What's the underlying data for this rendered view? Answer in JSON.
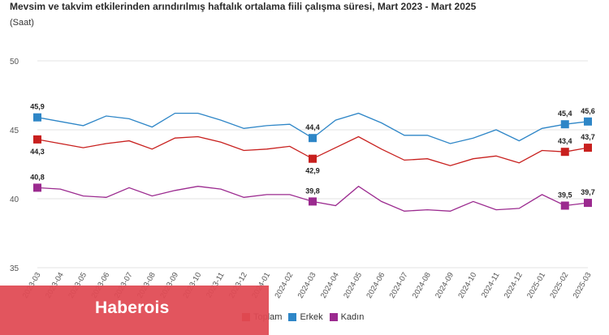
{
  "chart_data": {
    "type": "line",
    "title": "Mevsim ve takvim etkilerinden arındırılmış haftalık ortalama fiili çalışma süresi, Mart 2023 - Mart 2025",
    "subtitle": "(Saat)",
    "ylim": [
      35,
      50
    ],
    "yticks": [
      "35",
      "40",
      "45",
      "50"
    ],
    "categories": [
      "2023-03",
      "2023-04",
      "2023-05",
      "2023-06",
      "2023-07",
      "2023-08",
      "2023-09",
      "2023-10",
      "2023-11",
      "2023-12",
      "2024-01",
      "2024-02",
      "2024-03",
      "2024-04",
      "2024-05",
      "2024-06",
      "2024-07",
      "2024-08",
      "2024-09",
      "2024-10",
      "2024-11",
      "2024-12",
      "2025-01",
      "2025-02",
      "2025-03"
    ],
    "grid": true,
    "legend_position": "bottom",
    "series": [
      {
        "name": "Toplam",
        "color": "#c8201e",
        "values": [
          44.3,
          44.0,
          43.7,
          44.0,
          44.2,
          43.6,
          44.4,
          44.5,
          44.1,
          43.5,
          43.6,
          43.8,
          42.9,
          43.7,
          44.5,
          43.6,
          42.8,
          42.9,
          42.4,
          42.9,
          43.1,
          42.6,
          43.5,
          43.4,
          43.7
        ],
        "labels": [
          {
            "index": 0,
            "text": "44,3",
            "pos": "below"
          },
          {
            "index": 12,
            "text": "42,9",
            "pos": "below"
          },
          {
            "index": 23,
            "text": "43,4",
            "pos": "above"
          },
          {
            "index": 24,
            "text": "43,7",
            "pos": "above"
          }
        ]
      },
      {
        "name": "Erkek",
        "color": "#2e86c7",
        "values": [
          45.9,
          45.6,
          45.3,
          46.0,
          45.8,
          45.2,
          46.2,
          46.2,
          45.7,
          45.1,
          45.3,
          45.4,
          44.4,
          45.7,
          46.2,
          45.5,
          44.6,
          44.6,
          44.0,
          44.4,
          45.0,
          44.2,
          45.1,
          45.4,
          45.6
        ],
        "labels": [
          {
            "index": 0,
            "text": "45,9",
            "pos": "above"
          },
          {
            "index": 12,
            "text": "44,4",
            "pos": "above"
          },
          {
            "index": 23,
            "text": "45,4",
            "pos": "above"
          },
          {
            "index": 24,
            "text": "45,6",
            "pos": "above"
          }
        ]
      },
      {
        "name": "Kadın",
        "color": "#9b2a8f",
        "values": [
          40.8,
          40.7,
          40.2,
          40.1,
          40.8,
          40.2,
          40.6,
          40.9,
          40.7,
          40.1,
          40.3,
          40.3,
          39.8,
          39.5,
          40.9,
          39.8,
          39.1,
          39.2,
          39.1,
          39.8,
          39.2,
          39.3,
          40.3,
          39.5,
          39.7
        ],
        "labels": [
          {
            "index": 0,
            "text": "40,8",
            "pos": "above"
          },
          {
            "index": 12,
            "text": "39,8",
            "pos": "above"
          },
          {
            "index": 23,
            "text": "39,5",
            "pos": "above"
          },
          {
            "index": 24,
            "text": "39,7",
            "pos": "above"
          }
        ]
      }
    ]
  },
  "legend": {
    "items": [
      {
        "name": "Toplam",
        "color": "#c8201e"
      },
      {
        "name": "Erkek",
        "color": "#2e86c7"
      },
      {
        "name": "Kadın",
        "color": "#9b2a8f"
      }
    ]
  },
  "watermark": {
    "text": "Haberois",
    "color": "#e04a54"
  }
}
